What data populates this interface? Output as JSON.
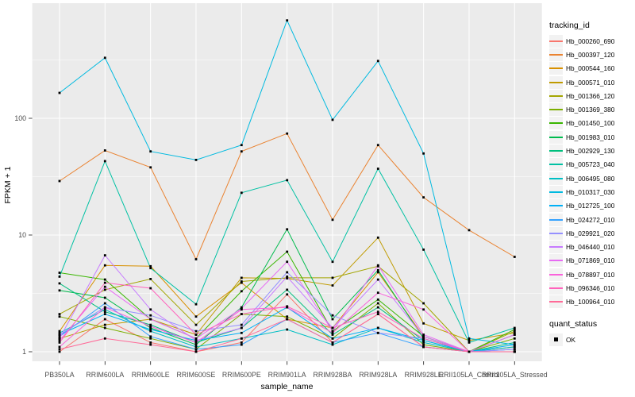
{
  "figure": {
    "background": "#FFFFFF",
    "panel_background": "#EBEBEB",
    "grid_color": "#FFFFFF",
    "axis_text_color": "#4D4D4D",
    "tick_mark_color": "#333333",
    "point_color": "#000000",
    "legend_key_background": "#F2F2F2"
  },
  "axes": {
    "x_label": "sample_name",
    "y_label": "FPKM + 1",
    "y_scale": "log10",
    "y_ticks": [
      "1",
      "10",
      "100"
    ]
  },
  "legend": {
    "tracking_title": "tracking_id",
    "quant_title": "quant_status",
    "quant_items": [
      {
        "label": "OK",
        "shape": "black-square"
      }
    ]
  },
  "chart_data": {
    "type": "line",
    "x_type": "categorical",
    "title": "",
    "xlabel": "sample_name",
    "ylabel": "FPKM + 1",
    "y_scale": "log10",
    "ylim": [
      0.93,
      970
    ],
    "grid": true,
    "legend_position": "right",
    "y_major_gridlines": [
      1,
      10,
      100
    ],
    "y_minor_gridlines": [
      3.162,
      31.62,
      316.2
    ],
    "categories": [
      "PB350LA",
      "RRIM600LA",
      "RRIM600LE",
      "RRIM600SE",
      "RRIM600PE",
      "RRIM901LA",
      "RRIM928BA",
      "RRIM928LA",
      "RRIM928LE",
      "RRII105LA_Control",
      "RRII105LA_Stressed"
    ],
    "quant_status": "OK",
    "series": [
      {
        "name": "Hb_000260_690",
        "color": "#F8766D",
        "values": [
          1.0,
          1.9,
          1.2,
          1.0,
          1.2,
          3.1,
          1.2,
          2.1,
          1.1,
          1.0,
          1.0
        ]
      },
      {
        "name": "Hb_000397_120",
        "color": "#EA8331",
        "values": [
          29,
          53,
          38,
          6.2,
          52,
          74,
          13.5,
          59,
          21,
          11,
          6.5
        ]
      },
      {
        "name": "Hb_000544_160",
        "color": "#D89000",
        "values": [
          1.5,
          5.5,
          5.4,
          2.0,
          3.9,
          1.9,
          1.6,
          4.8,
          1.35,
          1.0,
          1.1
        ]
      },
      {
        "name": "Hb_000571_010",
        "color": "#C09B00",
        "values": [
          1.3,
          1.7,
          1.9,
          1.4,
          4.3,
          4.25,
          3.7,
          9.5,
          1.75,
          1.25,
          1.45
        ]
      },
      {
        "name": "Hb_001366_120",
        "color": "#A3A500",
        "values": [
          2.1,
          3.4,
          4.2,
          1.7,
          4.0,
          4.3,
          4.3,
          5.4,
          2.6,
          1.0,
          1.5
        ]
      },
      {
        "name": "Hb_001369_380",
        "color": "#7CAE00",
        "values": [
          2.0,
          1.6,
          1.3,
          1.05,
          2.1,
          2.0,
          1.3,
          2.6,
          1.15,
          1.0,
          1.3
        ]
      },
      {
        "name": "Hb_001450_100",
        "color": "#39B600",
        "values": [
          4.75,
          4.15,
          1.9,
          1.3,
          3.3,
          7.2,
          1.5,
          2.8,
          1.35,
          1.0,
          1.55
        ]
      },
      {
        "name": "Hb_001983_010",
        "color": "#00BB4E",
        "values": [
          3.35,
          2.9,
          1.6,
          1.15,
          2.4,
          11.2,
          1.9,
          5.0,
          1.3,
          1.0,
          1.4
        ]
      },
      {
        "name": "Hb_002929_130",
        "color": "#00BF7D",
        "values": [
          3.85,
          2.2,
          1.7,
          1.2,
          1.6,
          3.4,
          1.4,
          2.4,
          1.25,
          1.0,
          1.2
        ]
      },
      {
        "name": "Hb_005723_040",
        "color": "#00C1A3",
        "values": [
          4.4,
          43,
          5.2,
          2.55,
          23,
          29.5,
          5.9,
          37,
          7.5,
          1.2,
          1.6
        ]
      },
      {
        "name": "Hb_006495_080",
        "color": "#00BFC4",
        "values": [
          1.45,
          2.3,
          1.5,
          1.1,
          1.3,
          1.55,
          1.15,
          1.6,
          1.2,
          1.0,
          1.1
        ]
      },
      {
        "name": "Hb_010317_030",
        "color": "#00BAE0",
        "values": [
          165,
          330,
          52,
          44,
          59,
          690,
          97,
          310,
          50,
          1.3,
          1.15
        ]
      },
      {
        "name": "Hb_012725_100",
        "color": "#00B0F6",
        "values": [
          1.4,
          2.1,
          1.55,
          1.25,
          1.45,
          2.4,
          1.3,
          1.6,
          1.25,
          1.0,
          1.15
        ]
      },
      {
        "name": "Hb_024272_010",
        "color": "#35A2FF",
        "values": [
          1.35,
          2.6,
          1.35,
          1.05,
          1.15,
          1.9,
          1.2,
          1.45,
          1.1,
          1.0,
          1.05
        ]
      },
      {
        "name": "Hb_029921_020",
        "color": "#9590FF",
        "values": [
          1.4,
          2.4,
          2.05,
          1.5,
          1.7,
          4.8,
          2.05,
          1.45,
          1.3,
          1.0,
          1.05
        ]
      },
      {
        "name": "Hb_046440_010",
        "color": "#C77CFF",
        "values": [
          1.3,
          6.7,
          2.3,
          1.25,
          1.6,
          4.4,
          1.6,
          4.15,
          1.35,
          1.0,
          1.0
        ]
      },
      {
        "name": "Hb_071869_010",
        "color": "#E76BF3",
        "values": [
          1.25,
          3.6,
          1.9,
          1.3,
          2.35,
          5.9,
          1.5,
          5.5,
          1.4,
          1.0,
          1.4
        ]
      },
      {
        "name": "Hb_078897_010",
        "color": "#FA62DB",
        "values": [
          1.1,
          2.4,
          1.65,
          1.2,
          2.3,
          2.4,
          1.45,
          3.2,
          2.3,
          1.0,
          1.0
        ]
      },
      {
        "name": "Hb_096346_010",
        "color": "#FF62BC",
        "values": [
          1.2,
          3.9,
          3.5,
          1.4,
          2.1,
          2.45,
          1.6,
          2.2,
          1.3,
          1.0,
          1.0
        ]
      },
      {
        "name": "Hb_100964_010",
        "color": "#FF6A98",
        "values": [
          1.05,
          1.3,
          1.15,
          1.0,
          1.3,
          1.9,
          1.2,
          2.1,
          1.1,
          1.0,
          1.0
        ]
      }
    ]
  }
}
